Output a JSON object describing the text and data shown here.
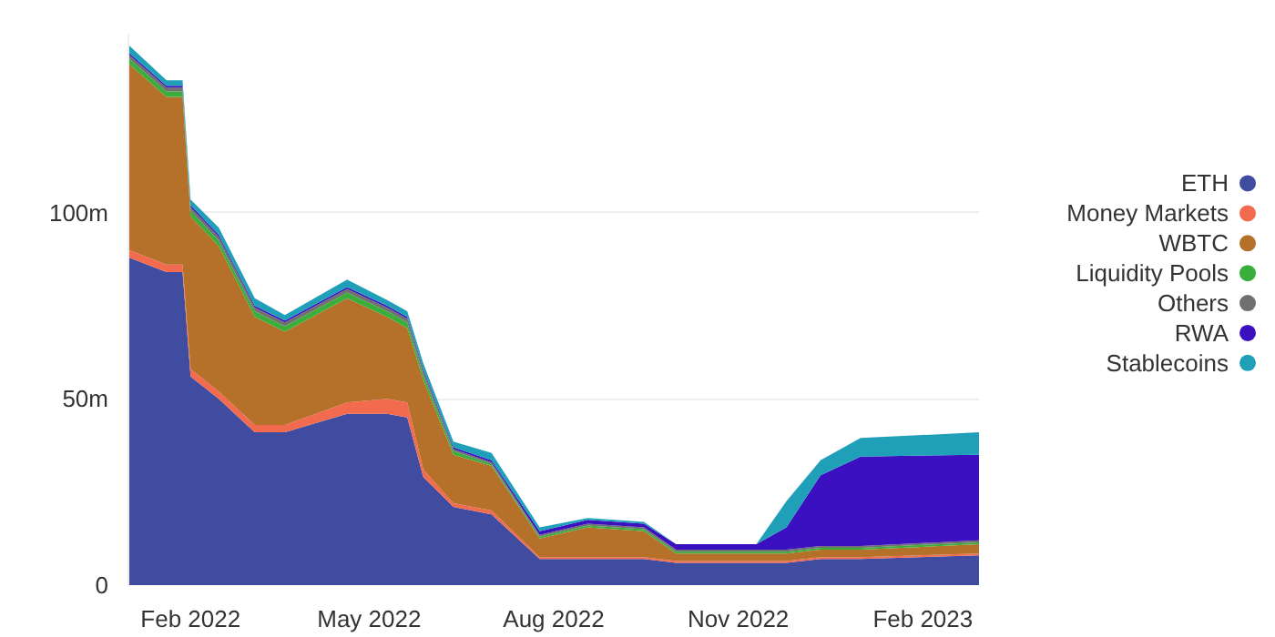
{
  "chart_data": {
    "type": "area",
    "stacked": true,
    "x": [
      "2022-01-01",
      "2022-01-20",
      "2022-01-28",
      "2022-02-01",
      "2022-02-15",
      "2022-03-05",
      "2022-03-20",
      "2022-04-20",
      "2022-05-10",
      "2022-05-20",
      "2022-05-28",
      "2022-06-12",
      "2022-07-01",
      "2022-07-25",
      "2022-08-18",
      "2022-09-15",
      "2022-10-01",
      "2022-11-10",
      "2022-11-25",
      "2022-12-12",
      "2023-01-01",
      "2023-03-01"
    ],
    "series": [
      {
        "name": "ETH",
        "color": "#3f4ca0",
        "values": [
          88,
          84,
          84,
          56,
          50,
          41,
          41,
          46,
          46,
          45,
          29,
          21,
          19,
          7,
          7,
          7,
          6,
          6,
          6,
          7,
          7,
          8
        ]
      },
      {
        "name": "Money Markets",
        "color": "#f26b4f",
        "values": [
          2,
          2,
          2,
          2,
          2,
          2,
          2,
          3,
          4,
          4,
          2,
          1,
          1,
          0.5,
          0.5,
          0.5,
          0.5,
          0.5,
          0.5,
          0.5,
          0.5,
          0.5
        ]
      },
      {
        "name": "WBTC",
        "color": "#b5702a",
        "values": [
          50,
          45,
          45,
          41,
          39,
          29,
          25,
          28,
          22,
          20,
          24,
          13,
          12,
          5,
          8,
          7,
          2,
          2,
          2,
          2,
          2,
          2.5
        ]
      },
      {
        "name": "Liquidity Pools",
        "color": "#3aae3a",
        "values": [
          1.5,
          1.5,
          1.5,
          1.5,
          1.5,
          1.5,
          1.5,
          1.5,
          1.5,
          1.5,
          1.5,
          1,
          0.5,
          0.5,
          0.5,
          0.5,
          0.5,
          0.5,
          0.5,
          0.5,
          0.5,
          0.5
        ]
      },
      {
        "name": "Others",
        "color": "#707070",
        "values": [
          1,
          1,
          1,
          1,
          1,
          1,
          1,
          1,
          1,
          1,
          1,
          0.5,
          0.5,
          0.5,
          0.5,
          0.5,
          0.5,
          0.5,
          0.5,
          0.5,
          0.5,
          0.5
        ]
      },
      {
        "name": "RWA",
        "color": "#3a10c0",
        "values": [
          0.5,
          0.5,
          0.5,
          0.5,
          0.5,
          0.5,
          0.5,
          0.5,
          0.5,
          0.5,
          0.5,
          0.5,
          0.5,
          1,
          1,
          1,
          1.5,
          1.5,
          6,
          19,
          24,
          23
        ]
      },
      {
        "name": "Stablecoins",
        "color": "#20a0b8",
        "values": [
          2,
          1.5,
          1.5,
          1.5,
          2,
          2,
          1.5,
          2,
          1.5,
          1.5,
          1.5,
          1.5,
          2,
          1,
          0.5,
          0.5,
          0,
          0,
          7,
          4,
          5,
          6
        ]
      }
    ],
    "xlim": [
      "2022-01-01",
      "2023-03-01"
    ],
    "xticks": [
      {
        "value": "2022-02-01",
        "label": "Feb 2022"
      },
      {
        "value": "2022-05-01",
        "label": "May 2022"
      },
      {
        "value": "2022-08-01",
        "label": "Aug 2022"
      },
      {
        "value": "2022-11-01",
        "label": "Nov 2022"
      },
      {
        "value": "2023-02-01",
        "label": "Feb 2023"
      }
    ],
    "ylim": [
      0,
      148
    ],
    "yticks": [
      0,
      {
        "value": 50,
        "label": "50m"
      },
      {
        "value": 100,
        "label": "100m"
      }
    ],
    "grid": "y",
    "legend": "right"
  }
}
